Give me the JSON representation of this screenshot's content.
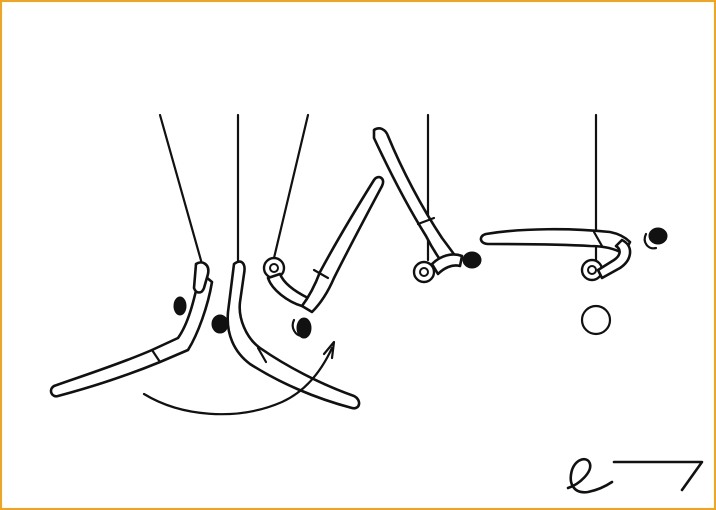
{
  "diagram": {
    "subject": "gymnastics-rings-element-sequence",
    "colors": {
      "border": "#f2a41c",
      "ink": "#111111",
      "background": "#ffffff"
    },
    "icons": [
      "rope-icon",
      "ring-icon",
      "gymnast-figure-icon",
      "motion-arrow-icon",
      "symbol-icon"
    ]
  }
}
